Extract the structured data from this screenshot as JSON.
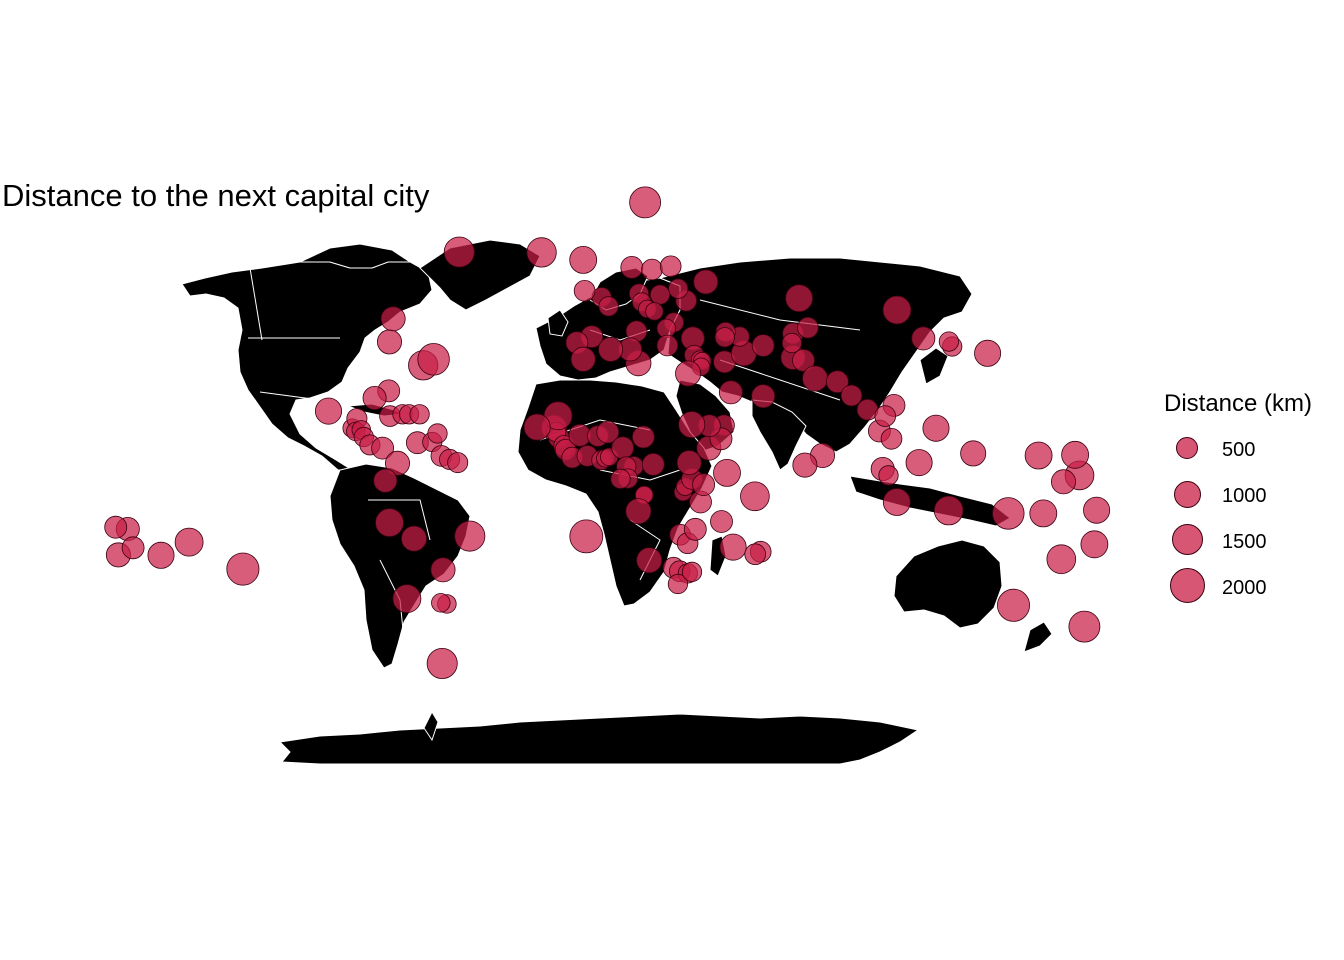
{
  "title": "Distance to the next capital city",
  "colors": {
    "land": "#000000",
    "borders": "#ffffff",
    "bubble_fill": "#c81e46",
    "bubble_stroke": "#3a0010"
  },
  "legend": {
    "title": "Distance (km)",
    "entries": [
      {
        "label": "500",
        "value": 500
      },
      {
        "label": "1000",
        "value": 1000
      },
      {
        "label": "1500",
        "value": 1500
      },
      {
        "label": "2000",
        "value": 2000
      }
    ]
  },
  "chart_data": {
    "type": "scatter",
    "title": "Distance to the next capital city",
    "size_legend": "Distance (km)",
    "x_unit": "longitude",
    "y_unit": "latitude",
    "points": [
      {
        "x": -21.9,
        "y": 64.1,
        "size": 1300
      },
      {
        "x": -51.7,
        "y": 64.2,
        "size": 1400
      },
      {
        "x": -6.8,
        "y": 62.0,
        "size": 1000
      },
      {
        "x": 15.6,
        "y": 78.2,
        "size": 1500
      },
      {
        "x": -77.0,
        "y": 38.9,
        "size": 700
      },
      {
        "x": -75.7,
        "y": 45.4,
        "size": 700
      },
      {
        "x": -64.8,
        "y": 32.3,
        "size": 1300
      },
      {
        "x": -61.0,
        "y": 34.0,
        "size": 1600
      },
      {
        "x": -99.1,
        "y": 19.4,
        "size": 900
      },
      {
        "x": -77.3,
        "y": 25.1,
        "size": 500
      },
      {
        "x": -82.4,
        "y": 23.1,
        "size": 600
      },
      {
        "x": -76.8,
        "y": 18.0,
        "size": 400
      },
      {
        "x": -72.3,
        "y": 18.5,
        "size": 300
      },
      {
        "x": -69.9,
        "y": 18.5,
        "size": 300
      },
      {
        "x": -66.1,
        "y": 18.5,
        "size": 300
      },
      {
        "x": -90.5,
        "y": 14.6,
        "size": 250
      },
      {
        "x": -88.8,
        "y": 17.3,
        "size": 350
      },
      {
        "x": -89.2,
        "y": 13.7,
        "size": 250
      },
      {
        "x": -87.2,
        "y": 14.1,
        "size": 250
      },
      {
        "x": -86.3,
        "y": 12.1,
        "size": 300
      },
      {
        "x": -84.1,
        "y": 9.9,
        "size": 350
      },
      {
        "x": -79.5,
        "y": 9.0,
        "size": 500
      },
      {
        "x": -74.1,
        "y": 4.7,
        "size": 700
      },
      {
        "x": -66.9,
        "y": 10.5,
        "size": 500
      },
      {
        "x": -61.5,
        "y": 10.7,
        "size": 300
      },
      {
        "x": -59.6,
        "y": 13.1,
        "size": 300
      },
      {
        "x": -58.2,
        "y": 6.8,
        "size": 400
      },
      {
        "x": -55.2,
        "y": 5.8,
        "size": 350
      },
      {
        "x": -52.3,
        "y": 4.9,
        "size": 350
      },
      {
        "x": -78.5,
        "y": -0.2,
        "size": 600
      },
      {
        "x": -77.0,
        "y": -12.0,
        "size": 1100
      },
      {
        "x": -68.1,
        "y": -16.5,
        "size": 800
      },
      {
        "x": -47.9,
        "y": -15.8,
        "size": 1400
      },
      {
        "x": -57.6,
        "y": -25.3,
        "size": 700
      },
      {
        "x": -56.2,
        "y": -34.9,
        "size": 250
      },
      {
        "x": -58.4,
        "y": -34.6,
        "size": 250
      },
      {
        "x": -70.7,
        "y": -33.4,
        "size": 1100
      },
      {
        "x": -57.9,
        "y": -51.7,
        "size": 1400
      },
      {
        "x": -149.6,
        "y": -17.5,
        "size": 1100
      },
      {
        "x": -159.8,
        "y": -21.2,
        "size": 900
      },
      {
        "x": -171.8,
        "y": -13.8,
        "size": 600
      },
      {
        "x": -175.2,
        "y": -21.1,
        "size": 700
      },
      {
        "x": -169.9,
        "y": -19.1,
        "size": 500
      },
      {
        "x": -130.1,
        "y": -25.1,
        "size": 1700
      },
      {
        "x": -176.2,
        "y": -13.3,
        "size": 500
      },
      {
        "x": -0.1,
        "y": 51.5,
        "size": 300
      },
      {
        "x": 2.4,
        "y": 48.9,
        "size": 300
      },
      {
        "x": -6.3,
        "y": 53.3,
        "size": 400
      },
      {
        "x": -3.7,
        "y": 40.4,
        "size": 500
      },
      {
        "x": -9.1,
        "y": 38.7,
        "size": 500
      },
      {
        "x": 12.5,
        "y": 41.9,
        "size": 400
      },
      {
        "x": 10.8,
        "y": 59.9,
        "size": 500
      },
      {
        "x": 18.1,
        "y": 59.3,
        "size": 400
      },
      {
        "x": 24.9,
        "y": 60.2,
        "size": 400
      },
      {
        "x": 37.6,
        "y": 55.8,
        "size": 700
      },
      {
        "x": 30.5,
        "y": 50.5,
        "size": 400
      },
      {
        "x": 27.6,
        "y": 53.9,
        "size": 300
      },
      {
        "x": 21.0,
        "y": 52.2,
        "size": 300
      },
      {
        "x": 13.4,
        "y": 52.5,
        "size": 300
      },
      {
        "x": 14.4,
        "y": 50.1,
        "size": 250
      },
      {
        "x": 16.4,
        "y": 48.2,
        "size": 200
      },
      {
        "x": 19.0,
        "y": 47.5,
        "size": 200
      },
      {
        "x": 26.1,
        "y": 44.4,
        "size": 300
      },
      {
        "x": 23.3,
        "y": 42.7,
        "size": 250
      },
      {
        "x": 23.7,
        "y": 37.9,
        "size": 400
      },
      {
        "x": 32.9,
        "y": 39.9,
        "size": 600
      },
      {
        "x": 33.4,
        "y": 35.2,
        "size": 300
      },
      {
        "x": 35.5,
        "y": 33.9,
        "size": 200
      },
      {
        "x": 36.3,
        "y": 33.5,
        "size": 200
      },
      {
        "x": 35.9,
        "y": 31.9,
        "size": 200
      },
      {
        "x": 44.4,
        "y": 33.3,
        "size": 500
      },
      {
        "x": 51.4,
        "y": 35.7,
        "size": 800
      },
      {
        "x": 46.7,
        "y": 24.7,
        "size": 600
      },
      {
        "x": 58.4,
        "y": 23.6,
        "size": 600
      },
      {
        "x": 44.2,
        "y": 15.4,
        "size": 400
      },
      {
        "x": 69.2,
        "y": 34.5,
        "size": 700
      },
      {
        "x": 73.0,
        "y": 33.7,
        "size": 500
      },
      {
        "x": 77.2,
        "y": 28.6,
        "size": 800
      },
      {
        "x": 85.3,
        "y": 27.7,
        "size": 500
      },
      {
        "x": 90.4,
        "y": 23.8,
        "size": 400
      },
      {
        "x": 96.2,
        "y": 19.8,
        "size": 400
      },
      {
        "x": 100.5,
        "y": 13.8,
        "size": 500
      },
      {
        "x": 104.9,
        "y": 11.6,
        "size": 400
      },
      {
        "x": 105.8,
        "y": 21.0,
        "size": 500
      },
      {
        "x": 102.6,
        "y": 18.0,
        "size": 400
      },
      {
        "x": 101.7,
        "y": 3.1,
        "size": 600
      },
      {
        "x": 103.8,
        "y": 1.3,
        "size": 300
      },
      {
        "x": 106.8,
        "y": -6.2,
        "size": 1000
      },
      {
        "x": 114.9,
        "y": 4.9,
        "size": 900
      },
      {
        "x": 121.0,
        "y": 14.6,
        "size": 900
      },
      {
        "x": 116.4,
        "y": 39.9,
        "size": 600
      },
      {
        "x": 126.9,
        "y": 37.6,
        "size": 300
      },
      {
        "x": 125.7,
        "y": 39.0,
        "size": 300
      },
      {
        "x": 139.7,
        "y": 35.7,
        "size": 900
      },
      {
        "x": 106.9,
        "y": 47.9,
        "size": 1100
      },
      {
        "x": 71.4,
        "y": 51.2,
        "size": 1000
      },
      {
        "x": 69.2,
        "y": 41.3,
        "size": 400
      },
      {
        "x": 74.6,
        "y": 42.9,
        "size": 400
      },
      {
        "x": 68.8,
        "y": 38.6,
        "size": 300
      },
      {
        "x": 58.4,
        "y": 37.9,
        "size": 500
      },
      {
        "x": 49.9,
        "y": 40.4,
        "size": 300
      },
      {
        "x": 44.8,
        "y": 41.7,
        "size": 300
      },
      {
        "x": 44.5,
        "y": 40.2,
        "size": 300
      },
      {
        "x": 79.9,
        "y": 6.9,
        "size": 700
      },
      {
        "x": 73.5,
        "y": 4.2,
        "size": 700
      },
      {
        "x": 125.6,
        "y": -8.6,
        "size": 1200
      },
      {
        "x": 147.2,
        "y": -9.4,
        "size": 1600
      },
      {
        "x": 149.1,
        "y": -35.3,
        "size": 1700
      },
      {
        "x": 174.8,
        "y": -41.3,
        "size": 1500
      },
      {
        "x": 159.9,
        "y": -9.4,
        "size": 1000
      },
      {
        "x": 166.4,
        "y": -22.3,
        "size": 1200
      },
      {
        "x": 178.4,
        "y": -18.1,
        "size": 1000
      },
      {
        "x": 173.0,
        "y": 1.3,
        "size": 1200
      },
      {
        "x": 171.4,
        "y": 7.1,
        "size": 1000
      },
      {
        "x": 158.2,
        "y": 6.9,
        "size": 1000
      },
      {
        "x": 134.5,
        "y": 7.5,
        "size": 800
      },
      {
        "x": 179.2,
        "y": -8.5,
        "size": 900
      },
      {
        "x": 167.2,
        "y": -0.5,
        "size": 700
      },
      {
        "x": -17.4,
        "y": 14.7,
        "size": 800
      },
      {
        "x": -15.6,
        "y": 11.9,
        "size": 400
      },
      {
        "x": -16.6,
        "y": 13.5,
        "size": 300
      },
      {
        "x": -13.7,
        "y": 9.6,
        "size": 400
      },
      {
        "x": -13.2,
        "y": 8.5,
        "size": 400
      },
      {
        "x": -10.8,
        "y": 6.3,
        "size": 400
      },
      {
        "x": -8.0,
        "y": 12.6,
        "size": 500
      },
      {
        "x": -5.3,
        "y": 6.8,
        "size": 400
      },
      {
        "x": -1.5,
        "y": 12.4,
        "size": 400
      },
      {
        "x": -0.2,
        "y": 5.6,
        "size": 300
      },
      {
        "x": 1.2,
        "y": 6.1,
        "size": 200
      },
      {
        "x": 2.6,
        "y": 6.5,
        "size": 200
      },
      {
        "x": 2.1,
        "y": 13.5,
        "size": 500
      },
      {
        "x": 7.5,
        "y": 9.1,
        "size": 500
      },
      {
        "x": 15.0,
        "y": 12.1,
        "size": 500
      },
      {
        "x": 11.5,
        "y": 3.9,
        "size": 300
      },
      {
        "x": 8.8,
        "y": 3.8,
        "size": 300
      },
      {
        "x": 9.4,
        "y": 0.4,
        "size": 300
      },
      {
        "x": 18.6,
        "y": 4.4,
        "size": 500
      },
      {
        "x": 15.3,
        "y": -4.3,
        "size": 200
      },
      {
        "x": 15.3,
        "y": -4.2,
        "size": 200
      },
      {
        "x": 13.2,
        "y": -8.8,
        "size": 800
      },
      {
        "x": 28.3,
        "y": -15.4,
        "size": 400
      },
      {
        "x": 31.0,
        "y": -17.8,
        "size": 400
      },
      {
        "x": 25.9,
        "y": -24.7,
        "size": 400
      },
      {
        "x": 17.1,
        "y": -22.6,
        "size": 800
      },
      {
        "x": 28.2,
        "y": -25.7,
        "size": 400
      },
      {
        "x": 31.1,
        "y": -26.3,
        "size": 300
      },
      {
        "x": 27.5,
        "y": -29.3,
        "size": 300
      },
      {
        "x": 32.6,
        "y": -25.9,
        "size": 300
      },
      {
        "x": 33.8,
        "y": -13.9,
        "size": 500
      },
      {
        "x": 35.7,
        "y": -6.2,
        "size": 500
      },
      {
        "x": 29.4,
        "y": -3.4,
        "size": 200
      },
      {
        "x": 30.1,
        "y": -1.9,
        "size": 200
      },
      {
        "x": 32.6,
        "y": 0.3,
        "size": 400
      },
      {
        "x": 36.8,
        "y": -1.3,
        "size": 500
      },
      {
        "x": 38.7,
        "y": 9.0,
        "size": 700
      },
      {
        "x": 43.1,
        "y": 11.6,
        "size": 500
      },
      {
        "x": 45.3,
        "y": 2.0,
        "size": 1000
      },
      {
        "x": 38.9,
        "y": 15.3,
        "size": 500
      },
      {
        "x": 32.5,
        "y": 15.6,
        "size": 900
      },
      {
        "x": 31.6,
        "y": 4.9,
        "size": 700
      },
      {
        "x": 31.2,
        "y": 30.0,
        "size": 800
      },
      {
        "x": 13.2,
        "y": 32.9,
        "size": 800
      },
      {
        "x": 10.2,
        "y": 36.8,
        "size": 600
      },
      {
        "x": 3.1,
        "y": 36.8,
        "size": 700
      },
      {
        "x": -6.8,
        "y": 34.0,
        "size": 700
      },
      {
        "x": -15.9,
        "y": 18.1,
        "size": 1100
      },
      {
        "x": -23.5,
        "y": 14.9,
        "size": 900
      },
      {
        "x": 47.5,
        "y": -18.9,
        "size": 900
      },
      {
        "x": 57.5,
        "y": -20.2,
        "size": 400
      },
      {
        "x": 55.5,
        "y": -20.9,
        "size": 400
      },
      {
        "x": 55.4,
        "y": -4.6,
        "size": 1200
      },
      {
        "x": 43.3,
        "y": -11.7,
        "size": 500
      },
      {
        "x": -5.7,
        "y": -15.9,
        "size": 1800
      },
      {
        "x": 6.7,
        "y": 0.3,
        "size": 300
      }
    ]
  }
}
